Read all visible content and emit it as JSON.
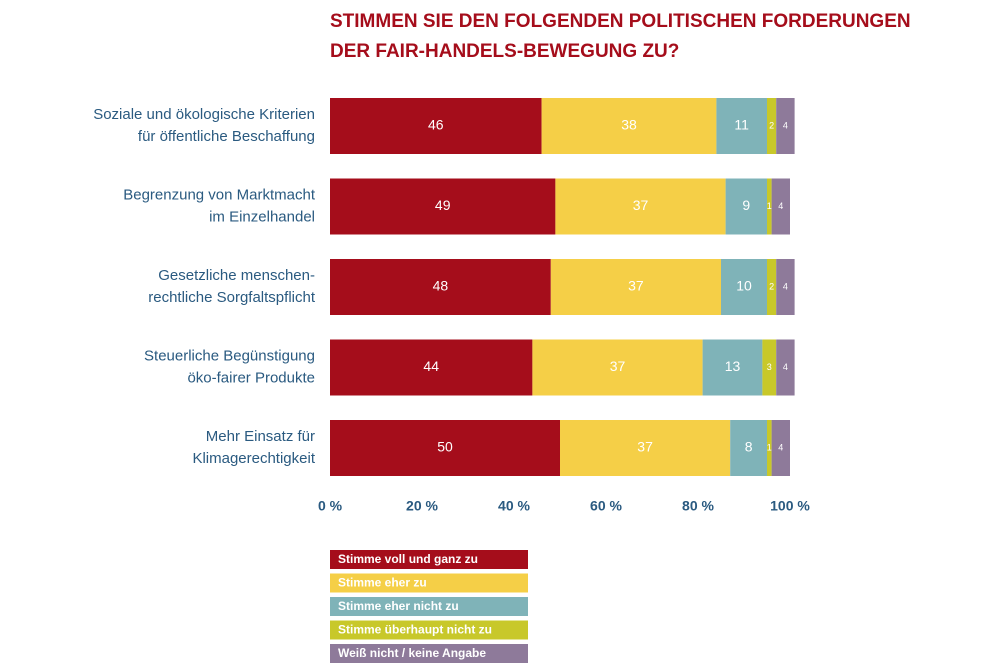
{
  "chart_data": {
    "type": "stacked-barh",
    "title": [
      "STIMMEN SIE DEN FOLGENDEN POLITISCHEN FORDERUNGEN",
      "DER FAIR-HANDELS-BEWEGUNG ZU?"
    ],
    "categories": [
      [
        "Soziale und ökologische Kriterien",
        "für öffentliche Beschaffung"
      ],
      [
        "Begrenzung von Marktmacht",
        "im Einzelhandel"
      ],
      [
        "Gesetzliche menschen-",
        "rechtliche Sorgfaltspflicht"
      ],
      [
        "Steuerliche Begünstigung",
        "öko-fairer Produkte"
      ],
      [
        "Mehr Einsatz für",
        "Klimagerechtigkeit"
      ]
    ],
    "series": [
      {
        "name": "Stimme voll und ganz zu",
        "color": "#a50d1b",
        "values": [
          46,
          49,
          48,
          44,
          50
        ]
      },
      {
        "name": "Stimme eher zu",
        "color": "#f5cf47",
        "values": [
          38,
          37,
          37,
          37,
          37
        ]
      },
      {
        "name": "Stimme eher nicht zu",
        "color": "#7fb3b8",
        "values": [
          11,
          9,
          10,
          13,
          8
        ]
      },
      {
        "name": "Stimme überhaupt nicht zu",
        "color": "#c8c82a",
        "values": [
          2,
          1,
          2,
          3,
          1
        ]
      },
      {
        "name": "Weiß nicht / keine Angabe",
        "color": "#8e7a9a",
        "values": [
          4,
          4,
          4,
          4,
          4
        ]
      }
    ],
    "xlim": [
      0,
      100
    ],
    "xticks": [
      {
        "value": 0,
        "label": "0 %"
      },
      {
        "value": 20,
        "label": "20 %"
      },
      {
        "value": 40,
        "label": "40 %"
      },
      {
        "value": 60,
        "label": "60 %"
      },
      {
        "value": 80,
        "label": "80 %"
      },
      {
        "value": 100,
        "label": "100 %"
      }
    ]
  }
}
